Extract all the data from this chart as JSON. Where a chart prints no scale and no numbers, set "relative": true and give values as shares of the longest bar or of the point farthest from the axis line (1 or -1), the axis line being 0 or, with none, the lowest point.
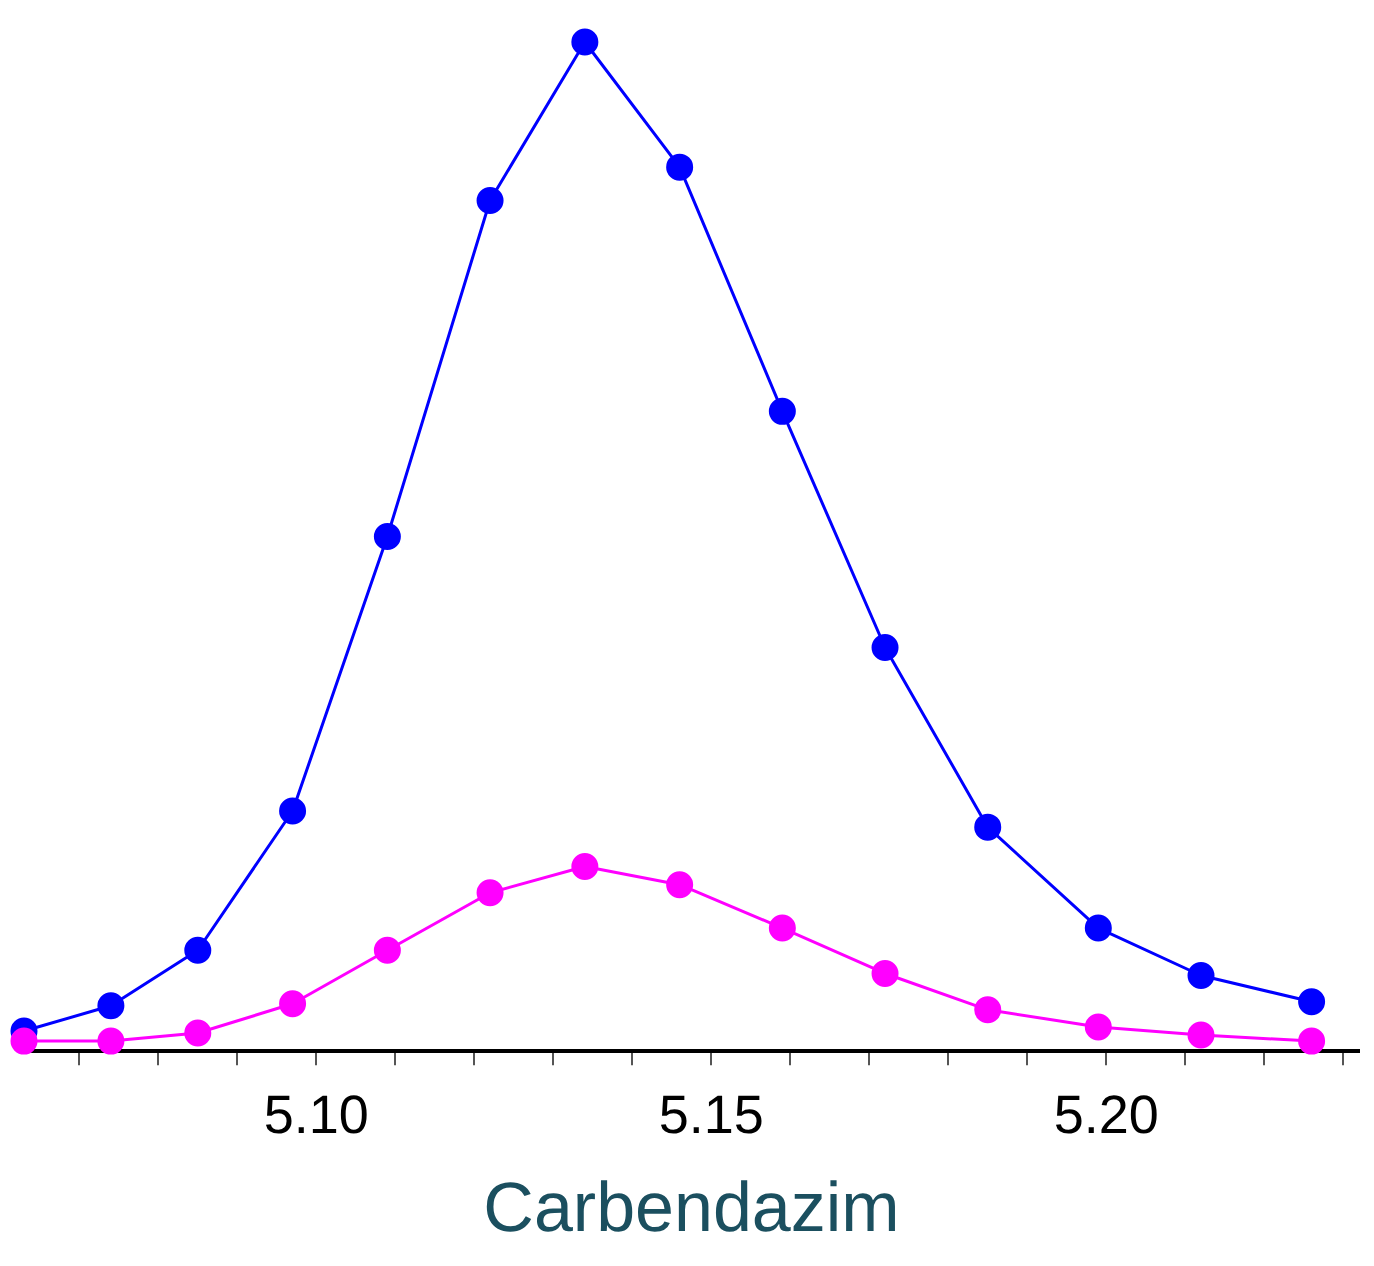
{
  "chart_data": {
    "type": "line",
    "xlabel": "Carbendazim",
    "relative": true,
    "x": [
      5.063,
      5.074,
      5.085,
      5.097,
      5.109,
      5.122,
      5.134,
      5.146,
      5.159,
      5.172,
      5.185,
      5.199,
      5.212,
      5.226
    ],
    "series": [
      {
        "color": "#0000ff",
        "values": [
          0.02,
          0.045,
          0.1,
          0.238,
          0.51,
          0.843,
          1,
          0.876,
          0.634,
          0.4,
          0.222,
          0.122,
          0.075,
          0.049
        ]
      },
      {
        "color": "#ff00ff",
        "values": [
          0.01,
          0.01,
          0.018,
          0.047,
          0.1,
          0.157,
          0.183,
          0.165,
          0.122,
          0.077,
          0.041,
          0.024,
          0.016,
          0.01
        ]
      }
    ],
    "xlim": [
      5.063,
      5.232
    ],
    "xticks": [
      {
        "value": 5.07,
        "label": null
      },
      {
        "value": 5.08,
        "label": null
      },
      {
        "value": 5.09,
        "label": null
      },
      {
        "value": 5.1,
        "label": "5.10"
      },
      {
        "value": 5.11,
        "label": null
      },
      {
        "value": 5.12,
        "label": null
      },
      {
        "value": 5.13,
        "label": null
      },
      {
        "value": 5.14,
        "label": null
      },
      {
        "value": 5.15,
        "label": "5.15"
      },
      {
        "value": 5.16,
        "label": null
      },
      {
        "value": 5.17,
        "label": null
      },
      {
        "value": 5.18,
        "label": null
      },
      {
        "value": 5.19,
        "label": null
      },
      {
        "value": 5.2,
        "label": "5.20"
      },
      {
        "value": 5.21,
        "label": null
      },
      {
        "value": 5.22,
        "label": null
      },
      {
        "value": 5.23,
        "label": null
      }
    ],
    "tick_labels": "x",
    "grid": false,
    "legend": false,
    "marker": "circle",
    "line_style": "solid"
  }
}
